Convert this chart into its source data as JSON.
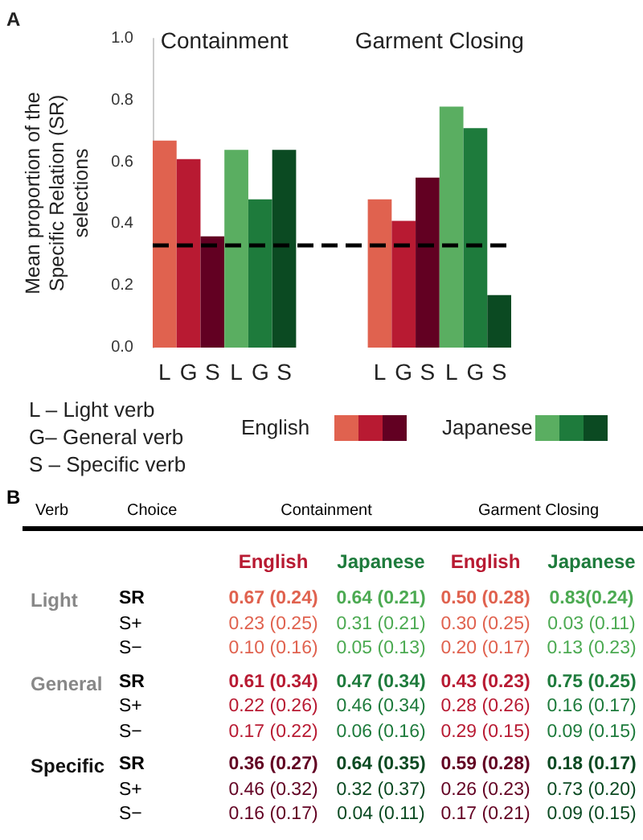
{
  "chart_data": [
    {
      "type": "bar",
      "ylabel": "Mean proportion of the Specific Relation (SR) selections",
      "annotations": [
        "A",
        "Containment",
        "Garment Closing",
        "L – Light verb",
        "G– General verb",
        "S – Specific verb"
      ],
      "categories": [
        "L",
        "G",
        "S",
        "L",
        "G",
        "S",
        null,
        null,
        null,
        "L",
        "G",
        "S",
        "L",
        "G",
        "S"
      ],
      "series": [
        {
          "name": "English",
          "colors": [
            "#e0624f",
            "#b81a32",
            "#620022",
            null,
            null,
            null,
            null,
            null,
            null,
            "#e0624f",
            "#b81a32",
            "#620022",
            null,
            null,
            null
          ],
          "values": [
            0.67,
            0.61,
            0.36,
            null,
            null,
            null,
            null,
            null,
            null,
            0.48,
            0.41,
            0.55,
            null,
            null,
            null
          ]
        },
        {
          "name": "Japanese",
          "colors": [
            null,
            null,
            null,
            "#5aae61",
            "#1e7b3c",
            "#0b4a22",
            null,
            null,
            null,
            null,
            null,
            null,
            "#5aae61",
            "#1e7b3c",
            "#0b4a22"
          ],
          "values": [
            null,
            null,
            null,
            0.64,
            0.48,
            0.64,
            null,
            null,
            null,
            null,
            null,
            null,
            0.78,
            0.71,
            0.17
          ]
        }
      ],
      "ylim": [
        0,
        1
      ],
      "yticks": [
        {
          "value": 0,
          "label": "0.0"
        },
        {
          "value": 0.2,
          "label": "0.2"
        },
        {
          "value": 0.4,
          "label": "0.4"
        },
        {
          "value": 0.6,
          "label": "0.6"
        },
        {
          "value": 0.8,
          "label": "0.8"
        },
        {
          "value": 1,
          "label": "1.0"
        }
      ],
      "ref_lines": [
        {
          "axis": "y",
          "value": 0.33,
          "color": "#000000",
          "line_style": "dashed"
        }
      ],
      "grid": false,
      "legend": "bottom"
    },
    {
      "type": "other",
      "annotations": [
        "B",
        "Verb",
        "Choice",
        "Containment",
        "Garment Closing",
        "Light",
        "General",
        "Specific"
      ],
      "categories": [
        "SR",
        "S+",
        "S−",
        "SR",
        "S+",
        "S−",
        "SR",
        "S+",
        "S−"
      ],
      "series": [
        {
          "name": "English",
          "colors": [
            "#e0624f",
            "#e0624f",
            "#e0624f",
            "#b81a32",
            "#b81a32",
            "#b81a32",
            "#620022",
            "#620022",
            "#620022"
          ],
          "values": [
            0.67,
            0.23,
            0.1,
            0.61,
            0.22,
            0.17,
            0.36,
            0.46,
            0.16
          ],
          "value_labels": [
            "0.67 (0.24)",
            "0.23 (0.25)",
            "0.10 (0.16)",
            "0.61 (0.34)",
            "0.22 (0.26)",
            "0.17 (0.22)",
            "0.36 (0.27)",
            "0.46 (0.32)",
            "0.16 (0.17)"
          ]
        },
        {
          "name": "Japanese",
          "colors": [
            "#4caa52",
            "#4caa52",
            "#4caa52",
            "#1e7b3c",
            "#1e7b3c",
            "#1e7b3c",
            "#0b4a22",
            "#0b4a22",
            "#0b4a22"
          ],
          "values": [
            0.64,
            0.31,
            0.05,
            0.47,
            0.46,
            0.06,
            0.64,
            0.32,
            0.04
          ],
          "value_labels": [
            "0.64 (0.21)",
            "0.31 (0.21)",
            "0.05 (0.13)",
            "0.47 (0.34)",
            "0.46 (0.34)",
            "0.06 (0.16)",
            "0.64 (0.35)",
            "0.32 (0.37)",
            "0.04 (0.11)"
          ]
        },
        {
          "name": "English",
          "colors": [
            "#e0624f",
            "#e0624f",
            "#e0624f",
            "#b81a32",
            "#b81a32",
            "#b81a32",
            "#620022",
            "#620022",
            "#620022"
          ],
          "values": [
            0.5,
            0.3,
            0.2,
            0.43,
            0.28,
            0.29,
            0.59,
            0.26,
            0.17
          ],
          "value_labels": [
            "0.50 (0.28)",
            "0.30 (0.25)",
            "0.20 (0.17)",
            "0.43 (0.23)",
            "0.28 (0.26)",
            "0.29 (0.15)",
            "0.59 (0.28)",
            "0.26 (0.23)",
            "0.17 (0.21)"
          ]
        },
        {
          "name": "Japanese",
          "colors": [
            "#4caa52",
            "#4caa52",
            "#4caa52",
            "#1e7b3c",
            "#1e7b3c",
            "#1e7b3c",
            "#0b4a22",
            "#0b4a22",
            "#0b4a22"
          ],
          "values": [
            0.83,
            0.03,
            0.13,
            0.75,
            0.16,
            0.09,
            0.18,
            0.73,
            0.09
          ],
          "value_labels": [
            "0.83(0.24)",
            "0.03 (0.11)",
            "0.13 (0.23)",
            "0.75 (0.25)",
            "0.16 (0.17)",
            "0.09 (0.15)",
            "0.18 (0.17)",
            "0.73 (0.20)",
            "0.09 (0.15)"
          ]
        }
      ]
    }
  ]
}
